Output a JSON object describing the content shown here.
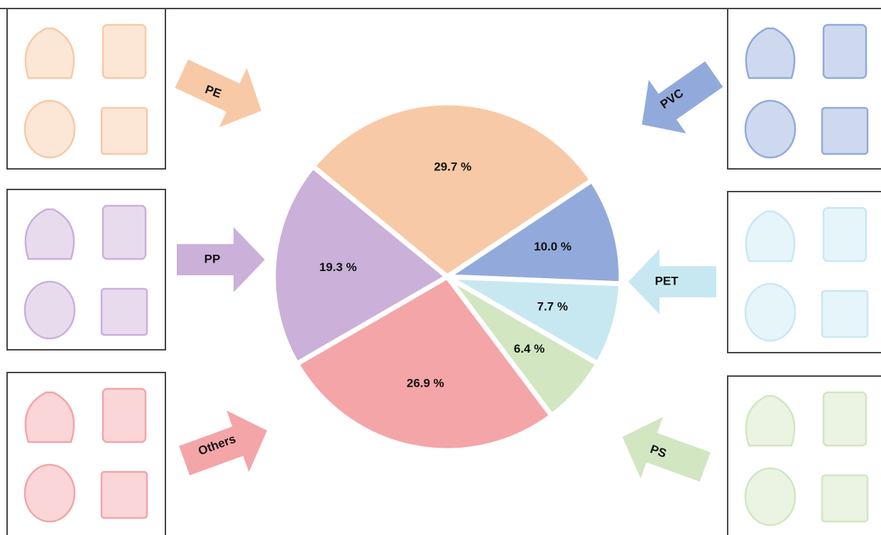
{
  "chart_data": {
    "type": "pie",
    "categories": [
      "PE",
      "PVC",
      "PET",
      "PS",
      "Others",
      "PP"
    ],
    "values": [
      29.7,
      10.0,
      7.7,
      6.4,
      26.9,
      19.3
    ],
    "value_labels": [
      "29.7 %",
      "10.0 %",
      "7.7 %",
      "6.4 %",
      "26.9 %",
      "19.3 %"
    ],
    "colors": [
      "#f8c9a6",
      "#92aadb",
      "#c8e8f1",
      "#d2e6c1",
      "#f4a5a8",
      "#cbb0da"
    ]
  }
}
